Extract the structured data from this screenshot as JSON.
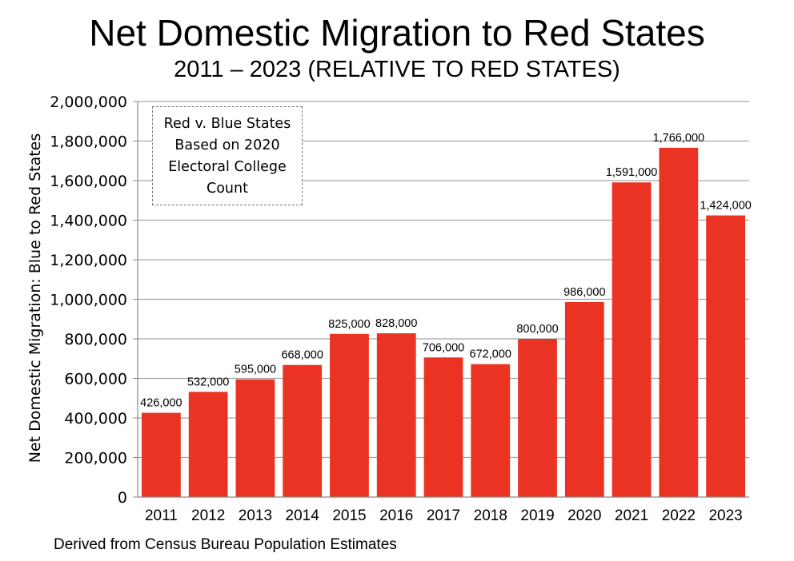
{
  "chart_data": {
    "type": "bar",
    "title": "Net Domestic Migration to Red States",
    "subtitle": "2011 – 2023 (RELATIVE TO RED STATES)",
    "ylabel": "Net Domestic Migration: Blue to Red States",
    "xlabel": "",
    "categories": [
      "2011",
      "2012",
      "2013",
      "2014",
      "2015",
      "2016",
      "2017",
      "2018",
      "2019",
      "2020",
      "2021",
      "2022",
      "2023"
    ],
    "values": [
      426000,
      532000,
      595000,
      668000,
      825000,
      828000,
      706000,
      672000,
      800000,
      986000,
      1591000,
      1766000,
      1424000
    ],
    "data_labels": [
      "426,000",
      "532,000",
      "595,000",
      "668,000",
      "825,000",
      "828,000",
      "706,000",
      "672,000",
      "800,000",
      "986,000",
      "1,591,000",
      "1,766,000",
      "1,424,000"
    ],
    "ylim": [
      0,
      2000000
    ],
    "yticks": [
      0,
      200000,
      400000,
      600000,
      800000,
      1000000,
      1200000,
      1400000,
      1600000,
      1800000,
      2000000
    ],
    "ytick_labels": [
      "0",
      "200,000",
      "400,000",
      "600,000",
      "800,000",
      "1,000,000",
      "1,200,000",
      "1,400,000",
      "1,600,000",
      "1,800,000",
      "2,000,000"
    ],
    "grid": true,
    "bar_color": "#ea3323",
    "annotation": "Red v. Blue States\nBased on 2020\nElectoral College\nCount"
  },
  "footer": {
    "source": "Derived from Census Bureau Population Estimates"
  }
}
